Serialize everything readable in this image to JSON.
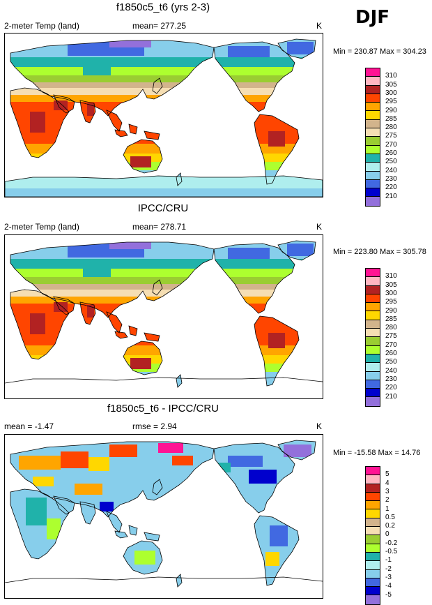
{
  "season": "DJF",
  "panels": [
    {
      "title": "f1850c5_t6 (yrs 2-3)",
      "left_label": "2-meter Temp (land)",
      "center_label": "mean= 277.25",
      "units": "K",
      "minmax": "Min = 230.87 Max = 304.23",
      "levels": [
        "310",
        "305",
        "300",
        "295",
        "290",
        "285",
        "280",
        "275",
        "270",
        "260",
        "250",
        "240",
        "230",
        "220",
        "210"
      ],
      "colors": [
        "#ff1493",
        "#ffb6c1",
        "#b22222",
        "#ff4500",
        "#ffa500",
        "#ffd700",
        "#d2b48c",
        "#f5deb3",
        "#9acd32",
        "#adff2f",
        "#20b2aa",
        "#afeeee",
        "#87ceeb",
        "#4169e1",
        "#0000cd",
        "#9370db"
      ],
      "antarctica": true,
      "antarctic_outline_only": false,
      "diff": false
    },
    {
      "title": "IPCC/CRU",
      "left_label": "2-meter Temp (land)",
      "center_label": "mean= 278.71",
      "units": "K",
      "minmax": "Min = 223.80 Max = 305.78",
      "levels": [
        "310",
        "305",
        "300",
        "295",
        "290",
        "285",
        "280",
        "275",
        "270",
        "260",
        "250",
        "240",
        "230",
        "220",
        "210"
      ],
      "colors": [
        "#ff1493",
        "#ffb6c1",
        "#b22222",
        "#ff4500",
        "#ffa500",
        "#ffd700",
        "#d2b48c",
        "#f5deb3",
        "#9acd32",
        "#adff2f",
        "#20b2aa",
        "#afeeee",
        "#87ceeb",
        "#4169e1",
        "#0000cd",
        "#9370db"
      ],
      "antarctica": false,
      "antarctic_outline_only": true,
      "diff": false
    },
    {
      "title": "f1850c5_t6 - IPCC/CRU",
      "left_label": "mean =  -1.47",
      "center_label": "rmse =   2.94",
      "units": "K",
      "minmax": "Min = -15.58 Max =  14.76",
      "levels": [
        "5",
        "4",
        "3",
        "2",
        "1",
        "0.5",
        "0.2",
        "0",
        "-0.2",
        "-0.5",
        "-1",
        "-2",
        "-3",
        "-4",
        "-5"
      ],
      "colors": [
        "#ff1493",
        "#ffb6c1",
        "#b22222",
        "#ff4500",
        "#ffa500",
        "#ffd700",
        "#d2b48c",
        "#f5deb3",
        "#9acd32",
        "#adff2f",
        "#20b2aa",
        "#afeeee",
        "#87ceeb",
        "#4169e1",
        "#0000cd",
        "#9370db"
      ],
      "antarctica": false,
      "antarctic_outline_only": true,
      "diff": true
    }
  ]
}
